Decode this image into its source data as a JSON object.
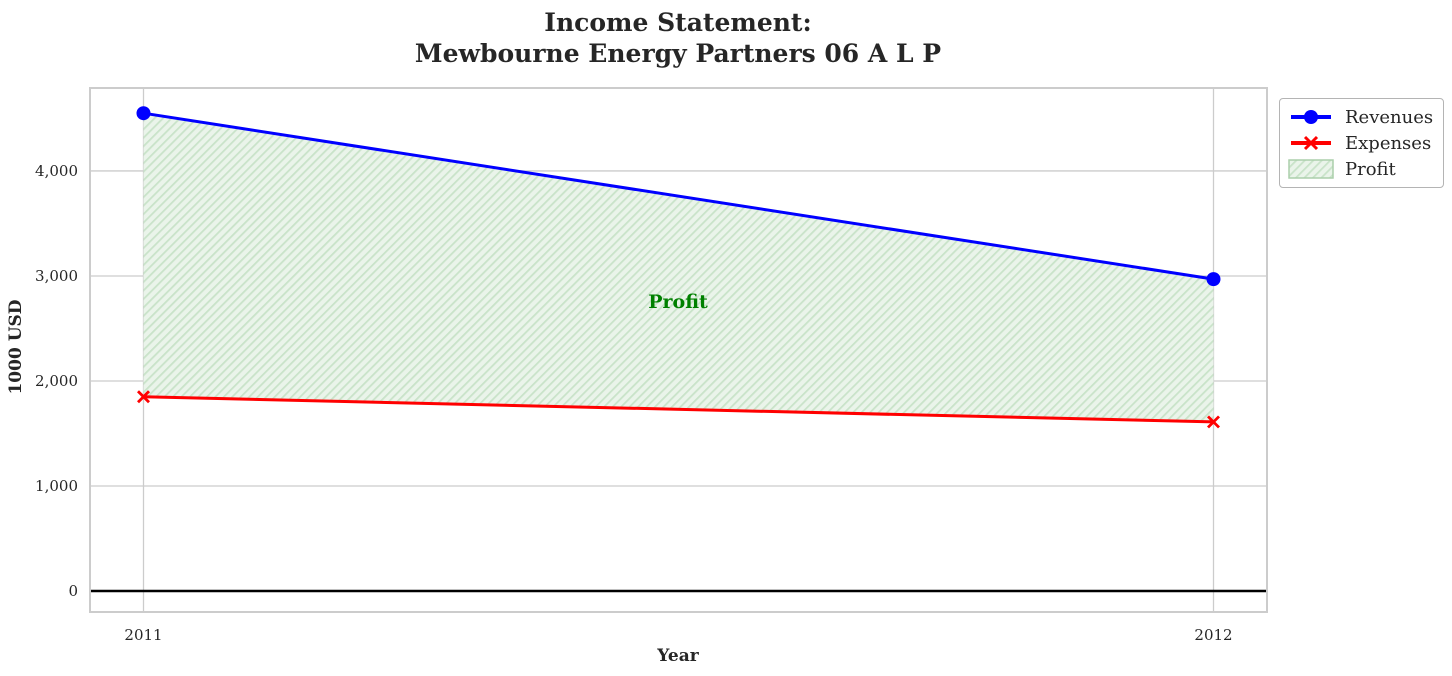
{
  "page": {
    "background": "#ffffff"
  },
  "colors": {
    "text": "#262626",
    "grid": "#cccccc",
    "axes_border": "#cccccc",
    "zero_line": "#000000",
    "revenues": "#0000ff",
    "expenses": "#ff0000",
    "profit_face": "#eaf4ea",
    "profit_hatch": "#c9e3c9",
    "profit_text": "#008000"
  },
  "chart_data": {
    "type": "line",
    "title": "Income Statement:\nMewbourne Energy Partners 06 A L P",
    "title_lines": [
      "Income Statement:",
      "Mewbourne Energy Partners 06 A L P"
    ],
    "xlabel": "Year",
    "ylabel": "1000 USD",
    "x": [
      2011,
      2012
    ],
    "xticklabels": [
      "2011",
      "2012"
    ],
    "series": [
      {
        "name": "Revenues",
        "values": [
          4550,
          2970
        ],
        "color": "#0000ff",
        "marker": "circle",
        "linewidth": 3
      },
      {
        "name": "Expenses",
        "values": [
          1850,
          1610
        ],
        "color": "#ff0000",
        "marker": "x",
        "linewidth": 3
      }
    ],
    "fill_between": {
      "label": "Profit",
      "upper_series": "Revenues",
      "lower_series": "Expenses",
      "values_2011": 2700,
      "values_2012": 1360
    },
    "annotation": {
      "text": "Profit",
      "x": 2011.5,
      "y": 2750
    },
    "yticks": [
      0,
      1000,
      2000,
      3000,
      4000
    ],
    "yticklabels": [
      "0",
      "1,000",
      "2,000",
      "3,000",
      "4,000"
    ],
    "xlim": [
      2010.95,
      2012.05
    ],
    "ylim": [
      -200,
      4790
    ],
    "axhline": 0,
    "grid": true,
    "legend": {
      "position": "upper-right-outside",
      "items": [
        "Revenues",
        "Expenses",
        "Profit"
      ]
    }
  }
}
